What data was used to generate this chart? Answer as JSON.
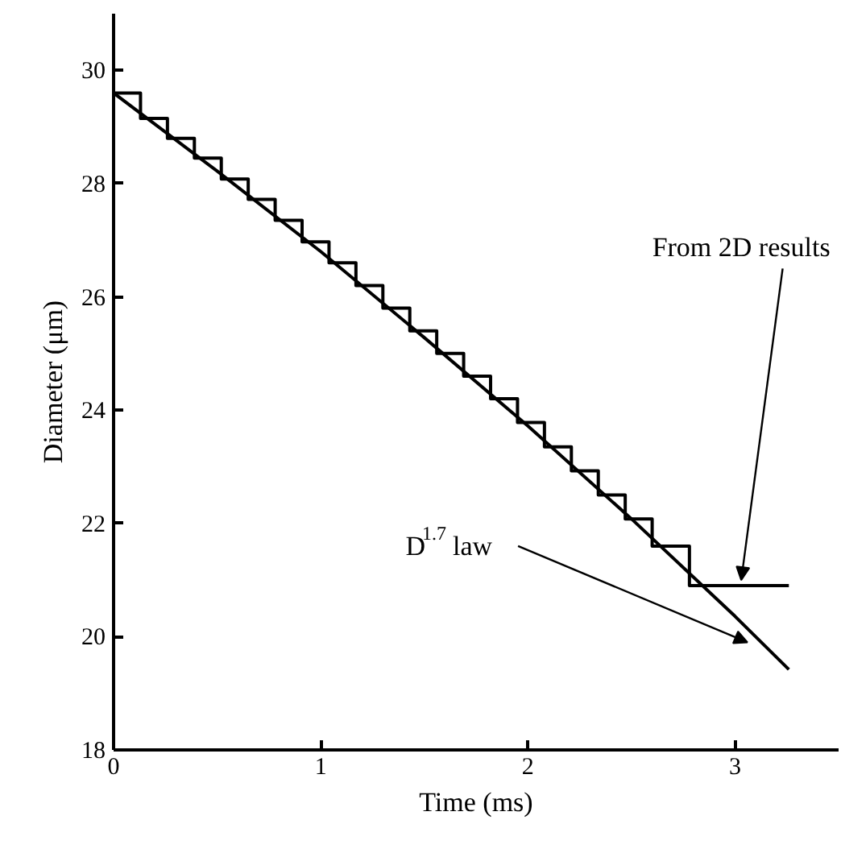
{
  "chart_data": {
    "type": "line",
    "xlabel": "Time (ms)",
    "ylabel": "Diameter (μm)",
    "xlim": [
      0,
      3.5
    ],
    "ylim": [
      18,
      31
    ],
    "xticks": [
      0,
      1,
      2,
      3
    ],
    "yticks": [
      18,
      20,
      22,
      24,
      26,
      28,
      30
    ],
    "grid": false,
    "marker": "none",
    "series": [
      {
        "type": "step",
        "color": "#000000",
        "x": [
          0,
          0.13,
          0.26,
          0.39,
          0.52,
          0.65,
          0.78,
          0.91,
          1.04,
          1.17,
          1.3,
          1.43,
          1.56,
          1.69,
          1.82,
          1.95,
          2.08,
          2.21,
          2.34,
          2.47,
          2.6,
          2.78,
          3.26
        ],
        "values": [
          29.6,
          29.15,
          28.8,
          28.45,
          28.08,
          27.72,
          27.35,
          26.97,
          26.6,
          26.2,
          25.8,
          25.4,
          25.0,
          24.6,
          24.2,
          23.78,
          23.35,
          22.93,
          22.5,
          22.08,
          21.6,
          20.9,
          20.9
        ]
      },
      {
        "color": "#000000",
        "x": [
          0,
          0.5,
          1,
          1.5,
          2,
          2.5,
          3,
          3.26
        ],
        "values": [
          29.6,
          28.22,
          26.8,
          25.28,
          23.72,
          22.08,
          20.36,
          19.42
        ]
      }
    ],
    "annotations": [
      {
        "text": "From 2D results",
        "x": 3.03,
        "y": 21.0
      },
      {
        "text": "D$^{1.7}$ law",
        "x": 3.06,
        "y": 19.9
      }
    ]
  }
}
